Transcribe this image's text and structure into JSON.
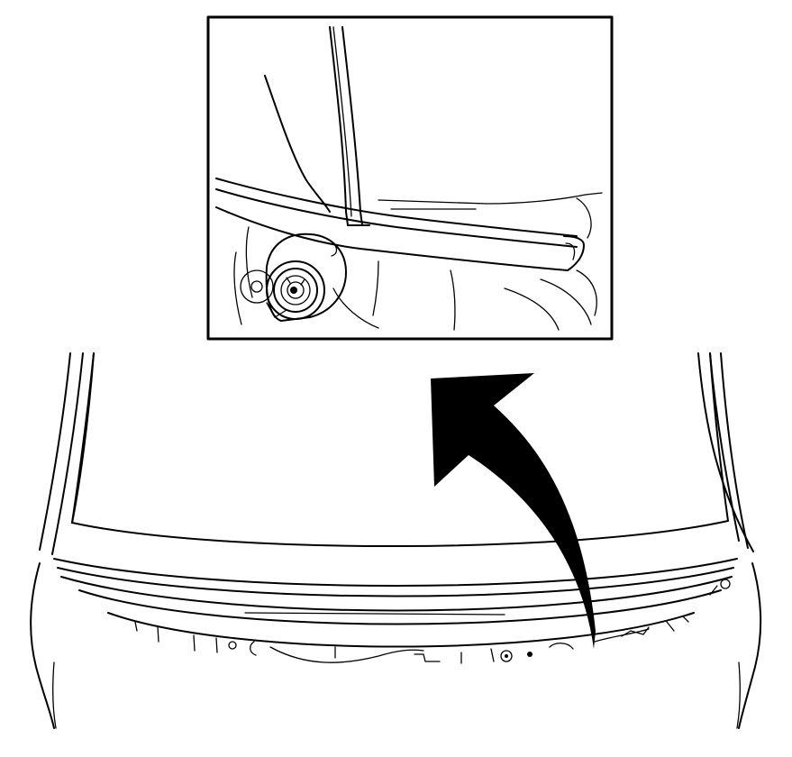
{
  "diagram": {
    "colors": {
      "background": "#ffffff",
      "linework": "#000000"
    },
    "elements": [
      "vehicle-front-outline",
      "windshield",
      "cowl-panel",
      "detail-inset-frame",
      "wiper-arm",
      "wiper-pivot-nut",
      "removal-direction-arrow"
    ]
  }
}
